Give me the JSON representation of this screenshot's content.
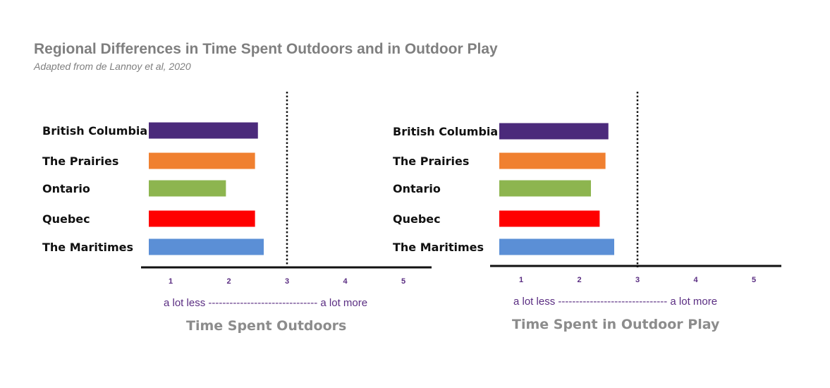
{
  "title": "Regional Differences in Time Spent Outdoors and in Outdoor Play",
  "subtitle": "Adapted from de Lannoy et al, 2020",
  "chart_data": [
    {
      "type": "bar",
      "orientation": "horizontal",
      "categories": [
        "British Columbia",
        "The Prairies",
        "Ontario",
        "Quebec",
        "The Maritimes"
      ],
      "values": [
        2.5,
        2.45,
        1.95,
        2.45,
        2.6
      ],
      "colors": [
        "#4b2a7b",
        "#f08030",
        "#8db54f",
        "#ff0000",
        "#5b8fd6"
      ],
      "xticks": [
        "1",
        "2",
        "3",
        "4",
        "5"
      ],
      "xlim": [
        0.65,
        5.5
      ],
      "reference_line": 3,
      "scale_text": "a lot less ------------------------------- a lot more",
      "xlabel": "Time Spent Outdoors"
    },
    {
      "type": "bar",
      "orientation": "horizontal",
      "categories": [
        "British Columbia",
        "The Prairies",
        "Ontario",
        "Quebec",
        "The Maritimes"
      ],
      "values": [
        2.5,
        2.45,
        2.2,
        2.35,
        2.6
      ],
      "colors": [
        "#4b2a7b",
        "#f08030",
        "#8db54f",
        "#ff0000",
        "#5b8fd6"
      ],
      "xticks": [
        "1",
        "2",
        "3",
        "4",
        "5"
      ],
      "xlim": [
        0.65,
        5.5
      ],
      "reference_line": 3,
      "scale_text": "a lot less ------------------------------- a lot more",
      "xlabel": "Time Spent in Outdoor Play"
    }
  ]
}
